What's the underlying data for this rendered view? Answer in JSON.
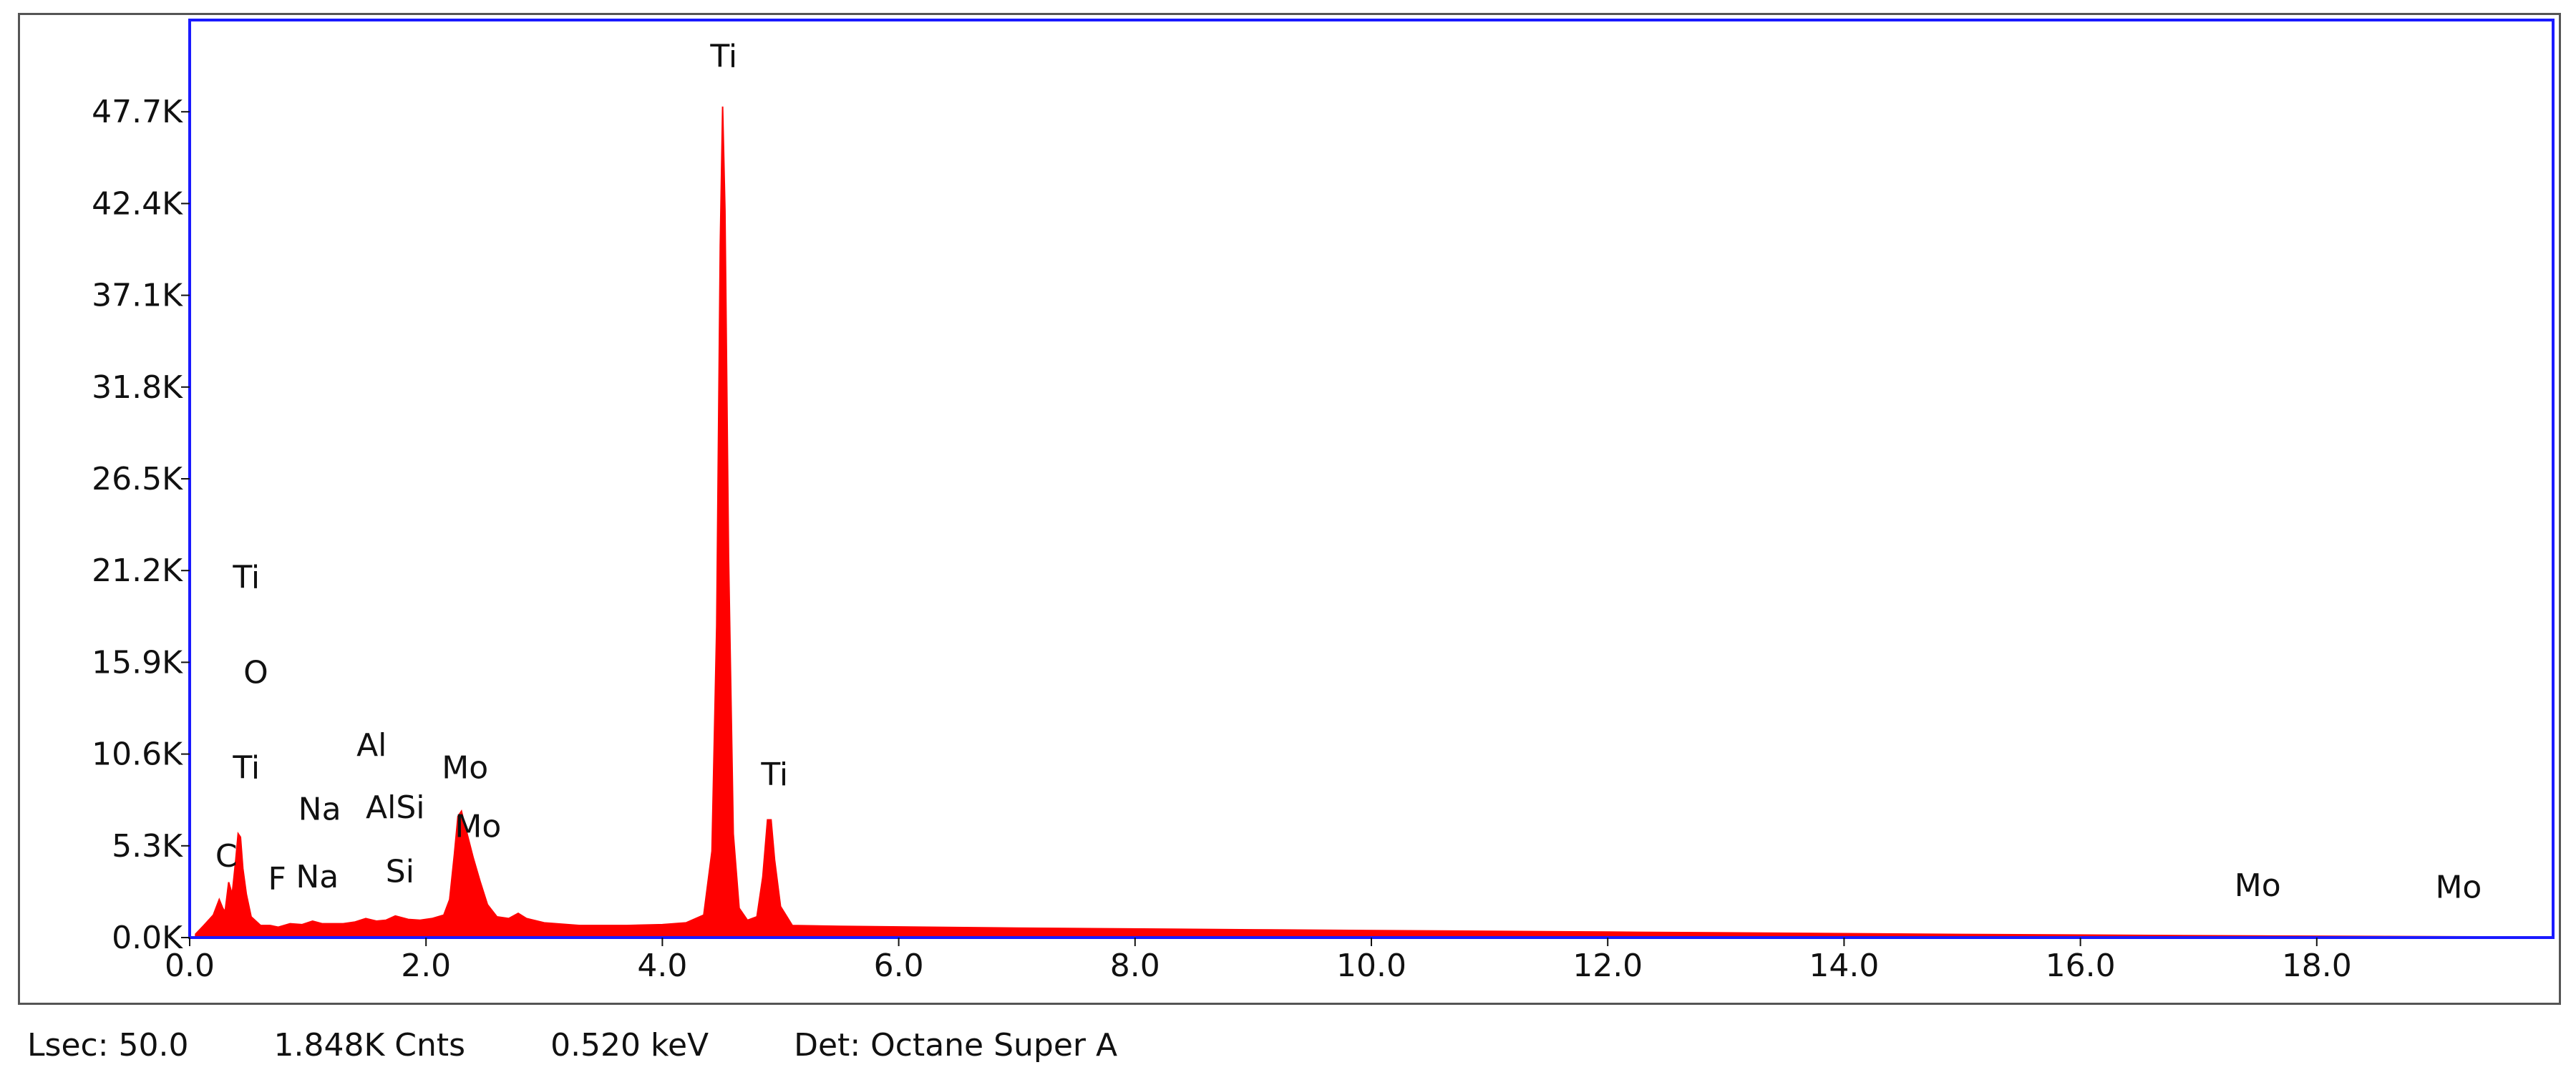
{
  "colors": {
    "spectrum": "#ff0000",
    "plot_border": "#1a1aff",
    "text": "#111111"
  },
  "chart_data": {
    "type": "area",
    "title": "",
    "xlabel": "",
    "ylabel": "",
    "xlim": [
      0.0,
      20.0
    ],
    "ylim": [
      0,
      53000
    ],
    "x_ticks": [
      0.0,
      2.0,
      4.0,
      6.0,
      8.0,
      10.0,
      12.0,
      14.0,
      16.0,
      18.0
    ],
    "x_tick_labels": [
      "0.0",
      "2.0",
      "4.0",
      "6.0",
      "8.0",
      "10.0",
      "12.0",
      "14.0",
      "16.0",
      "18.0"
    ],
    "y_ticks": [
      0,
      5300,
      10600,
      15900,
      21200,
      26500,
      31800,
      37100,
      42400,
      47700
    ],
    "y_tick_labels": [
      "0.0K",
      "5.3K",
      "10.6K",
      "15.9K",
      "21.2K",
      "26.5K",
      "31.8K",
      "37.1K",
      "42.4K",
      "47.7K"
    ],
    "series": [
      {
        "points": [
          [
            0.05,
            200
          ],
          [
            0.12,
            700
          ],
          [
            0.2,
            1300
          ],
          [
            0.25,
            2200
          ],
          [
            0.28,
            1700
          ],
          [
            0.3,
            1500
          ],
          [
            0.33,
            3200
          ],
          [
            0.36,
            2500
          ],
          [
            0.39,
            4500
          ],
          [
            0.41,
            6000
          ],
          [
            0.43,
            5800
          ],
          [
            0.45,
            4000
          ],
          [
            0.48,
            2500
          ],
          [
            0.52,
            1200
          ],
          [
            0.6,
            700
          ],
          [
            0.68,
            700
          ],
          [
            0.75,
            600
          ],
          [
            0.85,
            800
          ],
          [
            0.95,
            750
          ],
          [
            1.04,
            950
          ],
          [
            1.12,
            800
          ],
          [
            1.3,
            800
          ],
          [
            1.4,
            900
          ],
          [
            1.49,
            1100
          ],
          [
            1.58,
            950
          ],
          [
            1.66,
            1000
          ],
          [
            1.74,
            1250
          ],
          [
            1.85,
            1050
          ],
          [
            1.95,
            1000
          ],
          [
            2.05,
            1100
          ],
          [
            2.15,
            1300
          ],
          [
            2.2,
            2200
          ],
          [
            2.24,
            4800
          ],
          [
            2.27,
            7000
          ],
          [
            2.3,
            7300
          ],
          [
            2.34,
            6200
          ],
          [
            2.4,
            4600
          ],
          [
            2.46,
            3200
          ],
          [
            2.52,
            1900
          ],
          [
            2.6,
            1200
          ],
          [
            2.7,
            1100
          ],
          [
            2.78,
            1400
          ],
          [
            2.85,
            1100
          ],
          [
            3.0,
            850
          ],
          [
            3.3,
            700
          ],
          [
            3.7,
            700
          ],
          [
            4.0,
            750
          ],
          [
            4.2,
            850
          ],
          [
            4.35,
            1300
          ],
          [
            4.42,
            5000
          ],
          [
            4.46,
            18000
          ],
          [
            4.49,
            40000
          ],
          [
            4.51,
            48000
          ],
          [
            4.53,
            42000
          ],
          [
            4.56,
            22000
          ],
          [
            4.6,
            6000
          ],
          [
            4.65,
            1700
          ],
          [
            4.72,
            1000
          ],
          [
            4.8,
            1200
          ],
          [
            4.85,
            3500
          ],
          [
            4.89,
            6800
          ],
          [
            4.92,
            6800
          ],
          [
            4.95,
            4500
          ],
          [
            5.0,
            1800
          ],
          [
            5.1,
            700
          ],
          [
            5.5,
            650
          ],
          [
            7.0,
            550
          ],
          [
            9.0,
            450
          ],
          [
            12.0,
            320
          ],
          [
            15.0,
            180
          ],
          [
            17.5,
            90
          ],
          [
            19.4,
            40
          ]
        ]
      }
    ],
    "peak_labels": [
      {
        "text": "Ti",
        "x": 4.52,
        "y": 50300
      },
      {
        "text": "Ti",
        "x": 0.48,
        "y": 20200
      },
      {
        "text": "O",
        "x": 0.56,
        "y": 14700
      },
      {
        "text": "Ti",
        "x": 0.48,
        "y": 9200
      },
      {
        "text": "C",
        "x": 0.31,
        "y": 4100
      },
      {
        "text": "F",
        "x": 0.74,
        "y": 2800
      },
      {
        "text": "Na",
        "x": 1.1,
        "y": 6800
      },
      {
        "text": "Na",
        "x": 1.08,
        "y": 2900
      },
      {
        "text": "Al",
        "x": 1.54,
        "y": 10500
      },
      {
        "text": "AlSi",
        "x": 1.74,
        "y": 6900
      },
      {
        "text": "Si",
        "x": 1.78,
        "y": 3200
      },
      {
        "text": "Mo",
        "x": 2.33,
        "y": 9200
      },
      {
        "text": "Mo",
        "x": 2.44,
        "y": 5800
      },
      {
        "text": "Ti",
        "x": 4.95,
        "y": 8800
      },
      {
        "text": "Mo",
        "x": 17.5,
        "y": 2400
      },
      {
        "text": "Mo",
        "x": 19.2,
        "y": 2300
      }
    ]
  },
  "status_bar": {
    "lsec": "Lsec: 50.0",
    "counts": "1.848K Cnts",
    "energy": "0.520 keV",
    "detector": "Det: Octane Super A"
  }
}
